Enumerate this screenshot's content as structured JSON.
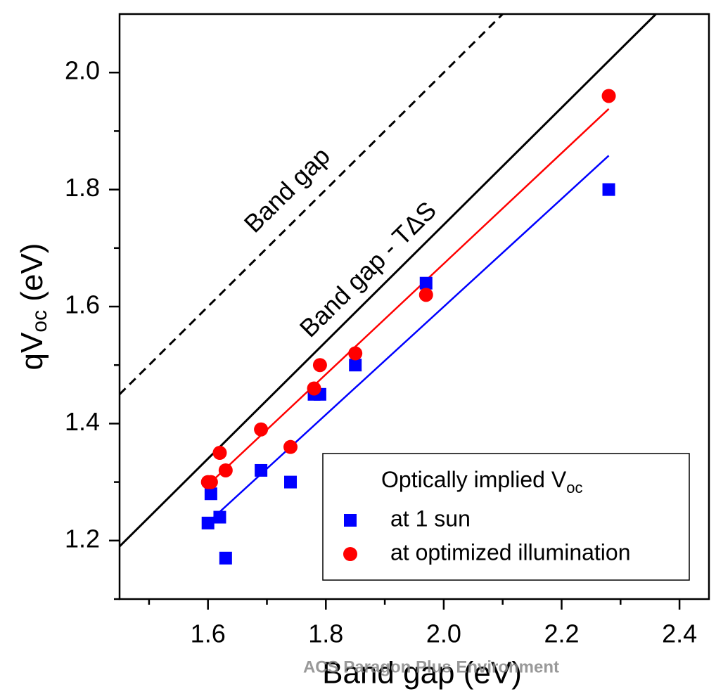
{
  "chart_data": {
    "type": "scatter",
    "x_label": "Band gap (eV)",
    "y_label": {
      "main": "qV",
      "sub": "oc",
      "tail": " (eV)"
    },
    "watermark": "ACS Paragon Plus Environment",
    "xlim": [
      1.45,
      2.45
    ],
    "ylim": [
      1.1,
      2.1
    ],
    "xticks": [
      1.6,
      1.8,
      {
        "value": 2.0,
        "label": "2.0"
      },
      2.2,
      2.4
    ],
    "yticks": [
      1.2,
      1.4,
      1.6,
      1.8,
      {
        "value": 2.0,
        "label": "2.0"
      }
    ],
    "xminorticks": [
      1.5,
      1.7,
      1.9,
      2.1,
      2.3
    ],
    "yminorticks": [
      1.1,
      1.3,
      1.5,
      1.7,
      1.9
    ],
    "legend_title": {
      "text": "Optically implied V",
      "sub": "oc"
    },
    "series": [
      {
        "name": "at 1 sun",
        "color": "#0000ff",
        "marker": "square",
        "x": [
          1.6,
          1.605,
          1.62,
          1.63,
          1.69,
          1.74,
          1.78,
          1.79,
          1.85,
          1.97,
          2.28
        ],
        "values": [
          1.23,
          1.28,
          1.24,
          1.17,
          1.32,
          1.3,
          1.45,
          1.45,
          1.5,
          1.64,
          1.8
        ]
      },
      {
        "name": "at optimized illumination",
        "color": "#ff0000",
        "marker": "circle",
        "x": [
          1.6,
          1.605,
          1.62,
          1.63,
          1.69,
          1.74,
          1.78,
          1.79,
          1.85,
          1.97,
          2.28
        ],
        "values": [
          1.3,
          1.3,
          1.35,
          1.32,
          1.39,
          1.36,
          1.46,
          1.5,
          1.52,
          1.62,
          1.96
        ]
      }
    ],
    "lines": [
      {
        "label": "Band gap",
        "color": "#000000",
        "dashed": true,
        "x": [
          1.45,
          2.1
        ],
        "values": [
          1.45,
          2.1
        ]
      },
      {
        "label": "Band gap - TΔS",
        "color": "#000000",
        "dashed": false,
        "x": [
          1.45,
          2.36
        ],
        "values": [
          1.19,
          2.1
        ]
      },
      {
        "color": "#0000ff",
        "dashed": false,
        "x": [
          1.61,
          2.28
        ],
        "values": [
          1.24,
          1.858
        ]
      },
      {
        "color": "#ff0000",
        "dashed": false,
        "x": [
          1.6,
          2.28
        ],
        "values": [
          1.295,
          1.938
        ]
      }
    ]
  }
}
